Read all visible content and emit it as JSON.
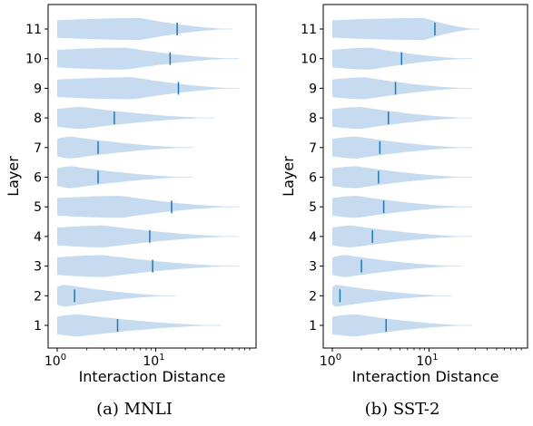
{
  "chart_data": [
    {
      "type": "violin",
      "caption": "(a) MNLI",
      "xlabel": "Interaction Distance",
      "ylabel": "Layer",
      "x_scale": "log",
      "x_ticks": [
        {
          "value": 1,
          "base": "10",
          "exp": "0"
        },
        {
          "value": 10,
          "base": "10",
          "exp": "1"
        }
      ],
      "layers": [
        1,
        2,
        3,
        4,
        5,
        6,
        7,
        8,
        9,
        10,
        11
      ],
      "colors": {
        "body": "#c6dbef",
        "median": "#1f77b4"
      },
      "violins": [
        {
          "layer": 1,
          "min": 1,
          "max": 46,
          "median": 4.1,
          "peak_at": 1.7
        },
        {
          "layer": 2,
          "min": 1,
          "max": 16,
          "median": 1.5,
          "peak_at": 1.2
        },
        {
          "layer": 3,
          "min": 1,
          "max": 70,
          "median": 9.3,
          "peak_at": 3.0
        },
        {
          "layer": 4,
          "min": 1,
          "max": 70,
          "median": 8.7,
          "peak_at": 3.0
        },
        {
          "layer": 5,
          "min": 1,
          "max": 70,
          "median": 14.5,
          "peak_at": 4.5
        },
        {
          "layer": 6,
          "min": 1,
          "max": 24,
          "median": 2.6,
          "peak_at": 1.4
        },
        {
          "layer": 7,
          "min": 1,
          "max": 24,
          "median": 2.6,
          "peak_at": 1.4
        },
        {
          "layer": 8,
          "min": 1,
          "max": 40,
          "median": 3.8,
          "peak_at": 1.8
        },
        {
          "layer": 9,
          "min": 1,
          "max": 70,
          "median": 17,
          "peak_at": 6.0
        },
        {
          "layer": 10,
          "min": 1,
          "max": 70,
          "median": 14,
          "peak_at": 5.0
        },
        {
          "layer": 11,
          "min": 1,
          "max": 60,
          "median": 16.5,
          "peak_at": 7.0
        }
      ]
    },
    {
      "type": "violin",
      "caption": "(b) SST-2",
      "xlabel": "Interaction Distance",
      "ylabel": "Layer",
      "x_scale": "log",
      "x_ticks": [
        {
          "value": 1,
          "base": "10",
          "exp": "0"
        },
        {
          "value": 10,
          "base": "10",
          "exp": "1"
        }
      ],
      "layers": [
        1,
        2,
        3,
        4,
        5,
        6,
        7,
        8,
        9,
        10,
        11
      ],
      "colors": {
        "body": "#c6dbef",
        "median": "#1f77b4"
      },
      "violins": [
        {
          "layer": 1,
          "min": 1,
          "max": 28,
          "median": 3.6,
          "peak_at": 1.8
        },
        {
          "layer": 2,
          "min": 1,
          "max": 17,
          "median": 1.2,
          "peak_at": 1.1
        },
        {
          "layer": 3,
          "min": 1,
          "max": 22,
          "median": 2.0,
          "peak_at": 1.4
        },
        {
          "layer": 4,
          "min": 1,
          "max": 28,
          "median": 2.6,
          "peak_at": 1.6
        },
        {
          "layer": 5,
          "min": 1,
          "max": 28,
          "median": 3.4,
          "peak_at": 1.8
        },
        {
          "layer": 6,
          "min": 1,
          "max": 28,
          "median": 3.0,
          "peak_at": 1.8
        },
        {
          "layer": 7,
          "min": 1,
          "max": 28,
          "median": 3.1,
          "peak_at": 1.8
        },
        {
          "layer": 8,
          "min": 1,
          "max": 28,
          "median": 3.8,
          "peak_at": 2.0
        },
        {
          "layer": 9,
          "min": 1,
          "max": 28,
          "median": 4.5,
          "peak_at": 2.2
        },
        {
          "layer": 10,
          "min": 1,
          "max": 28,
          "median": 5.2,
          "peak_at": 2.5
        },
        {
          "layer": 11,
          "min": 1,
          "max": 33,
          "median": 11.5,
          "peak_at": 9.0
        }
      ]
    }
  ]
}
